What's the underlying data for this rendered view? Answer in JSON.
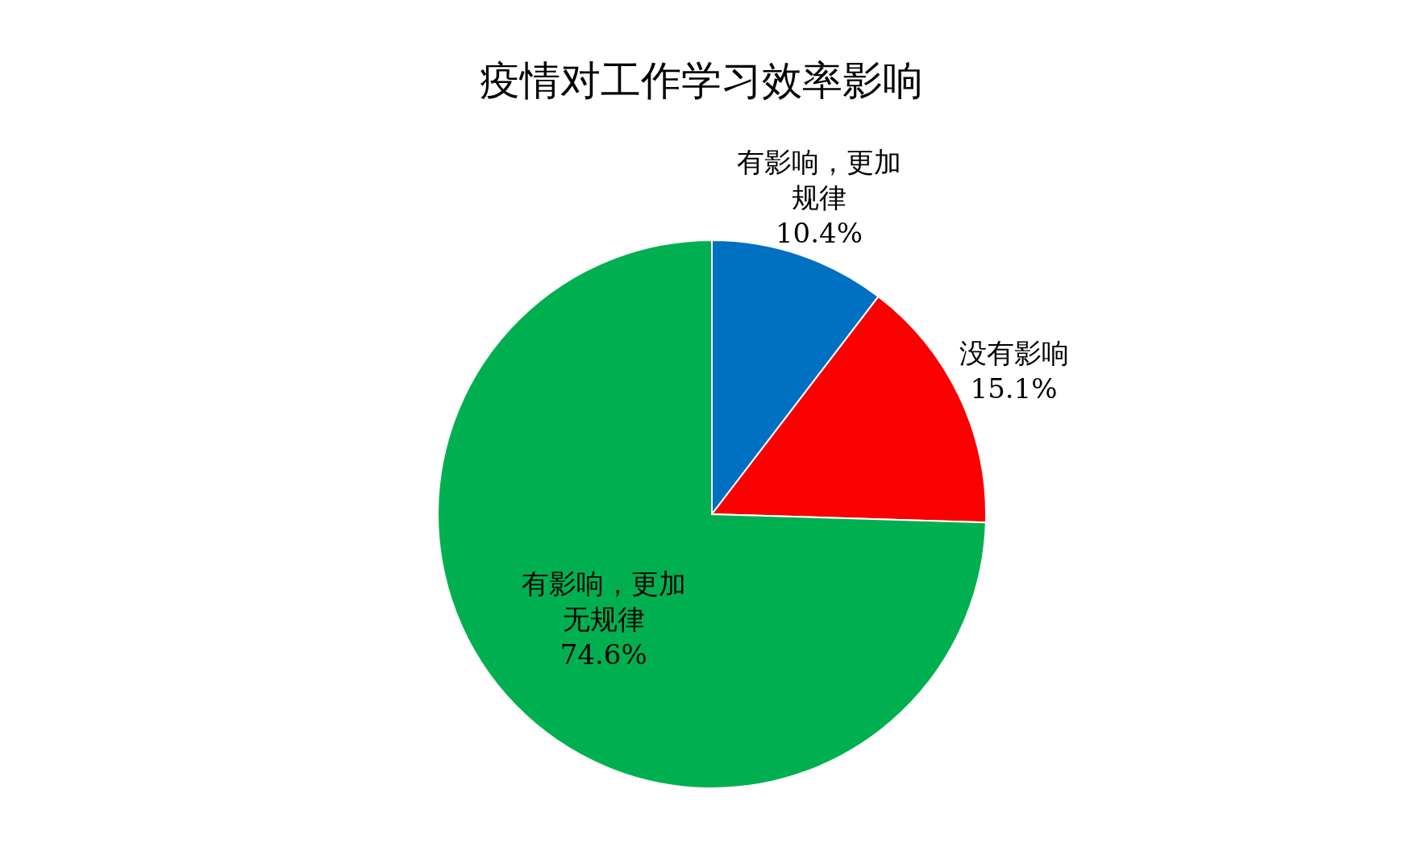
{
  "chart_data": {
    "type": "pie",
    "title": "疫情对工作学习效率影响",
    "categories": [
      "有影响，更加规律",
      "没有影响",
      "有影响，更加无规律"
    ],
    "values": [
      10.4,
      15.1,
      74.6
    ],
    "value_labels": [
      "10.4%",
      "15.1%",
      "74.6%"
    ],
    "colors": [
      "#0070c0",
      "#fa0000",
      "#00b050"
    ]
  }
}
